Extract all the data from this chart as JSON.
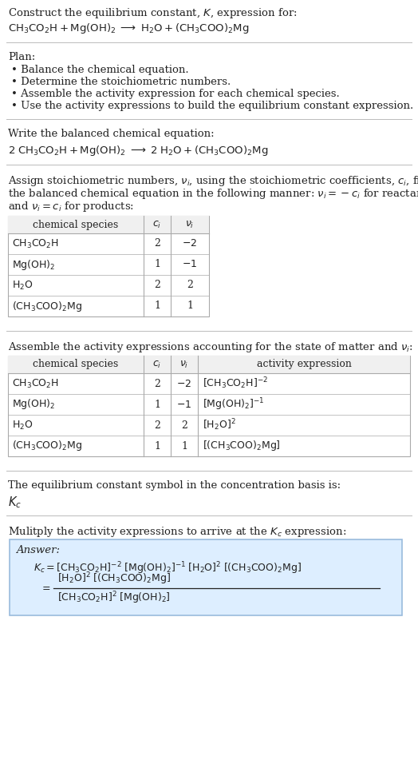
{
  "bg_color": "#ffffff",
  "text_color": "#222222",
  "title_line1": "Construct the equilibrium constant, $K$, expression for:",
  "title_line2": "$\\mathrm{CH_3CO_2H + Mg(OH)_2 \\;\\longrightarrow\\; H_2O + (CH_3COO)_2Mg}$",
  "plan_header": "Plan:",
  "plan_items": [
    "• Balance the chemical equation.",
    "• Determine the stoichiometric numbers.",
    "• Assemble the activity expression for each chemical species.",
    "• Use the activity expressions to build the equilibrium constant expression."
  ],
  "balanced_header": "Write the balanced chemical equation:",
  "balanced_eq": "$\\mathrm{2\\;CH_3CO_2H + Mg(OH)_2 \\;\\longrightarrow\\; 2\\;H_2O + (CH_3COO)_2Mg}$",
  "stoich_intro_lines": [
    "Assign stoichiometric numbers, $\\nu_i$, using the stoichiometric coefficients, $c_i$, from",
    "the balanced chemical equation in the following manner: $\\nu_i = -c_i$ for reactants",
    "and $\\nu_i = c_i$ for products:"
  ],
  "table1_header": [
    "chemical species",
    "$c_i$",
    "$\\nu_i$"
  ],
  "table1_data": [
    [
      "$\\mathrm{CH_3CO_2H}$",
      "2",
      "$-2$"
    ],
    [
      "$\\mathrm{Mg(OH)_2}$",
      "1",
      "$-1$"
    ],
    [
      "$\\mathrm{H_2O}$",
      "2",
      "2"
    ],
    [
      "$\\mathrm{(CH_3COO)_2Mg}$",
      "1",
      "1"
    ]
  ],
  "activity_intro": "Assemble the activity expressions accounting for the state of matter and $\\nu_i$:",
  "table2_header": [
    "chemical species",
    "$c_i$",
    "$\\nu_i$",
    "activity expression"
  ],
  "table2_data": [
    [
      "$\\mathrm{CH_3CO_2H}$",
      "2",
      "$-2$",
      "$[\\mathrm{CH_3CO_2H}]^{-2}$"
    ],
    [
      "$\\mathrm{Mg(OH)_2}$",
      "1",
      "$-1$",
      "$[\\mathrm{Mg(OH)_2}]^{-1}$"
    ],
    [
      "$\\mathrm{H_2O}$",
      "2",
      "2",
      "$[\\mathrm{H_2O}]^2$"
    ],
    [
      "$\\mathrm{(CH_3COO)_2Mg}$",
      "1",
      "1",
      "$[(\\mathrm{CH_3COO})_2\\mathrm{Mg}]$"
    ]
  ],
  "kc_intro": "The equilibrium constant symbol in the concentration basis is:",
  "kc_symbol": "$K_c$",
  "multiply_intro": "Mulitply the activity expressions to arrive at the $K_c$ expression:",
  "answer_label": "Answer:",
  "answer_eq1": "$K_c = [\\mathrm{CH_3CO_2H}]^{-2}\\;[\\mathrm{Mg(OH)_2}]^{-1}\\;[\\mathrm{H_2O}]^2\\;[(\\mathrm{CH_3COO})_2\\mathrm{Mg}]$",
  "answer_frac_num": "$[\\mathrm{H_2O}]^2\\;[(\\mathrm{CH_3COO})_2\\mathrm{Mg}]$",
  "answer_frac_den": "$[\\mathrm{CH_3CO_2H}]^2\\;[\\mathrm{Mg(OH)_2}]$",
  "answer_box_color": "#ddeeff",
  "answer_box_border": "#99bbdd",
  "divider_color": "#bbbbbb",
  "table_line_color": "#aaaaaa",
  "table_header_bg": "#f0f0f0"
}
